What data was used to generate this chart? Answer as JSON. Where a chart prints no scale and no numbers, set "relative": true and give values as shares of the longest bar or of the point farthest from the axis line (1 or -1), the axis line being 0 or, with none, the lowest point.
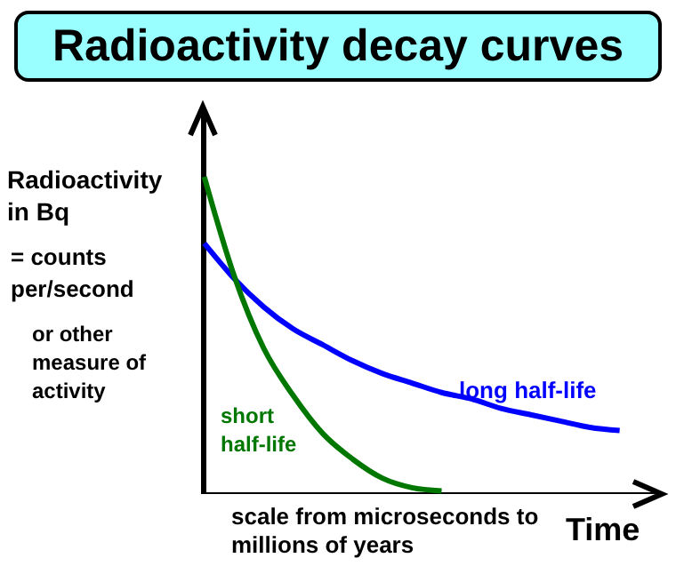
{
  "chart_data": {
    "type": "line",
    "title": "Radioactivity decay curves",
    "ylabel": "Radioactivity in Bq",
    "xlabel": "Time",
    "relative": true,
    "grid": false,
    "marker": "none",
    "line_style": "solid",
    "annotations": [
      "= counts per/second",
      "or other measure of activity",
      "scale from microseconds to millions of years"
    ],
    "categories": [
      null,
      null,
      null,
      null,
      null,
      null,
      null,
      null,
      null,
      null,
      null,
      null,
      null,
      null,
      null
    ],
    "series": [
      {
        "name": "long half-life",
        "color": "#0000ff",
        "values": [
          0.79,
          0.68,
          0.59,
          0.52,
          0.47,
          0.42,
          0.38,
          0.35,
          0.32,
          0.3,
          0.27,
          0.25,
          0.23,
          0.21,
          0.2
        ]
      },
      {
        "name": "short half-life",
        "color": "#007700",
        "values": [
          1,
          0.69,
          0.46,
          0.31,
          0.19,
          0.11,
          0.05,
          0.02,
          0.01,
          null,
          null,
          null,
          null,
          null,
          null
        ]
      }
    ]
  }
}
